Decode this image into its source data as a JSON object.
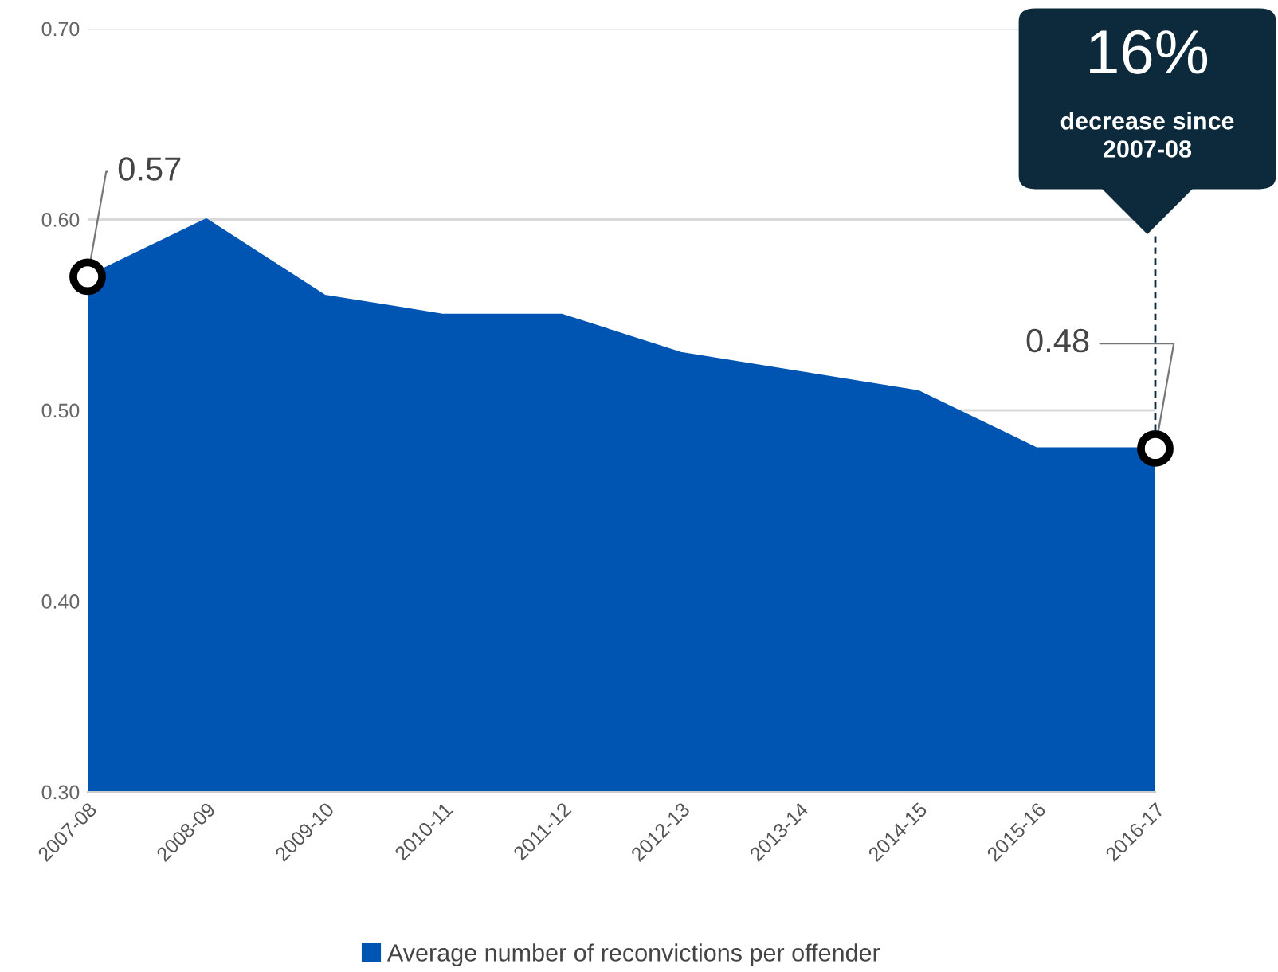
{
  "chart_data": {
    "type": "area",
    "categories": [
      "2007-08",
      "2008-09",
      "2009-10",
      "2010-11",
      "2011-12",
      "2012-13",
      "2013-14",
      "2014-15",
      "2015-16",
      "2016-17"
    ],
    "series": [
      {
        "name": "Average number of reconvictions per offender",
        "color": "#0055b3",
        "values": [
          0.57,
          0.6,
          0.56,
          0.55,
          0.55,
          0.53,
          0.52,
          0.51,
          0.48,
          0.48
        ]
      }
    ],
    "ylim": [
      0.3,
      0.7
    ],
    "yticks": [
      {
        "value": 0.3,
        "label": "0.30"
      },
      {
        "value": 0.4,
        "label": "0.40"
      },
      {
        "value": 0.5,
        "label": "0.50"
      },
      {
        "value": 0.6,
        "label": "0.60"
      },
      {
        "value": 0.7,
        "label": "0.70"
      }
    ],
    "grid": "y",
    "legend": "bottom",
    "annotations": [
      {
        "text": "0.57",
        "x": "2007-08",
        "y": 0.57
      },
      {
        "text": "0.48",
        "x": "2016-17",
        "y": 0.48
      },
      "16%",
      "decrease since\n2007-08"
    ]
  }
}
